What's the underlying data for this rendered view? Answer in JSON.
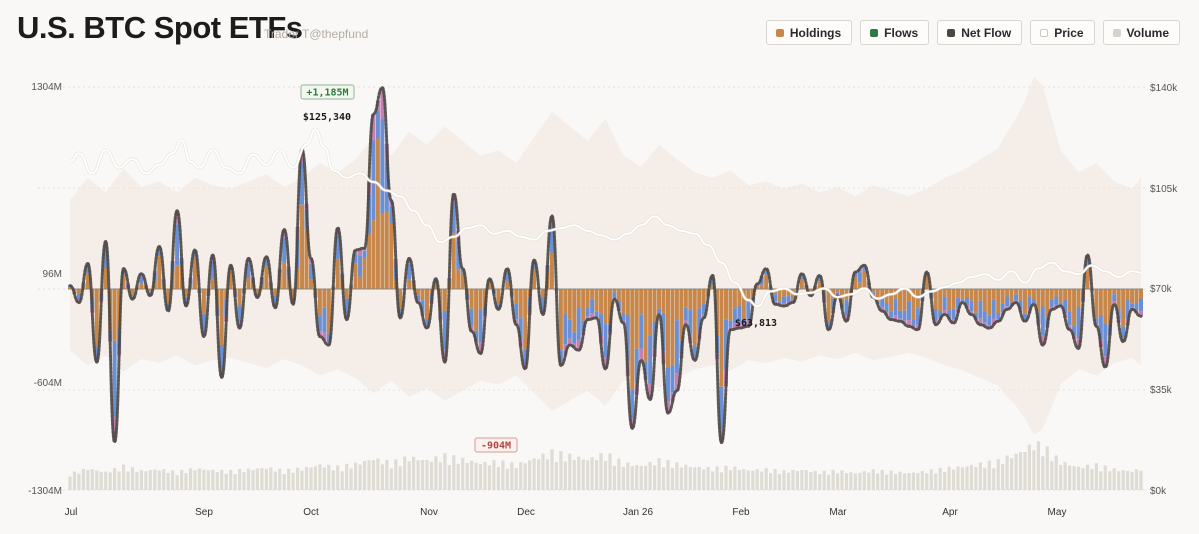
{
  "header": {
    "title": "U.S. BTC Spot ETFs",
    "subtitle": "Trader T@thepfund"
  },
  "legend": [
    {
      "label": "Holdings",
      "color": "#c8874a"
    },
    {
      "label": "Flows",
      "color": "#2f7a3f"
    },
    {
      "label": "Net Flow",
      "color": "#4a4744"
    },
    {
      "label": "Price",
      "color": "#ffffff"
    },
    {
      "label": "Volume",
      "color": "#d6d1ca"
    }
  ],
  "chart_data": {
    "type": "bar",
    "title": "U.S. BTC Spot ETFs",
    "x_ticks": [
      "Jul",
      "Sep",
      "Oct",
      "Nov",
      "Dec",
      "Jan 26",
      "Feb",
      "Mar",
      "Apr",
      "May"
    ],
    "y_left_ticks": [
      "1304M",
      "96M",
      "-604M",
      "-1304M"
    ],
    "y_right_ticks": [
      "$140k",
      "$105k",
      "$70k",
      "$35k",
      "$0k"
    ],
    "ylim_left": [
      -1304,
      1304
    ],
    "ylim_right": [
      0,
      140000
    ],
    "colors": {
      "holdings": "#c8874a",
      "etf_a": "#6b8fd4",
      "etf_b": "#c77fb2",
      "netflow": "#4a4744",
      "price": "#ffffff",
      "volume": "#d6d1ca",
      "positive_annotation": "#2f7a3f",
      "negative_annotation": "#b0463e"
    },
    "price_anchors": [
      [
        0,
        114000
      ],
      [
        2,
        117000
      ],
      [
        5,
        110000
      ],
      [
        8,
        118000
      ],
      [
        11,
        112000
      ],
      [
        14,
        115000
      ],
      [
        17,
        110000
      ],
      [
        20,
        113000
      ],
      [
        23,
        117000
      ],
      [
        25,
        121500
      ],
      [
        27,
        114000
      ],
      [
        29,
        112000
      ],
      [
        32,
        118000
      ],
      [
        35,
        112000
      ],
      [
        38,
        110000
      ],
      [
        41,
        116500
      ],
      [
        44,
        113000
      ],
      [
        47,
        118000
      ],
      [
        50,
        112000
      ],
      [
        53,
        120000
      ],
      [
        55,
        125340
      ],
      [
        57,
        119000
      ],
      [
        59,
        111000
      ],
      [
        62,
        108500
      ],
      [
        65,
        110000
      ],
      [
        68,
        107000
      ],
      [
        71,
        104000
      ],
      [
        74,
        102000
      ],
      [
        77,
        97000
      ],
      [
        80,
        92000
      ],
      [
        83,
        86000
      ],
      [
        86,
        88000
      ],
      [
        89,
        91000
      ],
      [
        92,
        92000
      ],
      [
        95,
        89000
      ],
      [
        98,
        90000
      ],
      [
        101,
        88000
      ],
      [
        104,
        87000
      ],
      [
        107,
        90000
      ],
      [
        110,
        91000
      ],
      [
        113,
        92000
      ],
      [
        116,
        90000
      ],
      [
        119,
        88500
      ],
      [
        122,
        87000
      ],
      [
        125,
        89000
      ],
      [
        128,
        92000
      ],
      [
        131,
        95000
      ],
      [
        134,
        92000
      ],
      [
        137,
        90000
      ],
      [
        140,
        89000
      ],
      [
        143,
        85000
      ],
      [
        146,
        79000
      ],
      [
        149,
        72000
      ],
      [
        152,
        66000
      ],
      [
        154,
        63813
      ],
      [
        157,
        69000
      ],
      [
        160,
        70000
      ],
      [
        163,
        68000
      ],
      [
        166,
        68500
      ],
      [
        169,
        70000
      ],
      [
        172,
        67000
      ],
      [
        175,
        68000
      ],
      [
        178,
        70000
      ],
      [
        181,
        66500
      ],
      [
        184,
        68000
      ],
      [
        187,
        70000
      ],
      [
        190,
        67000
      ],
      [
        193,
        69000
      ],
      [
        196,
        70500
      ],
      [
        199,
        72000
      ],
      [
        202,
        74000
      ],
      [
        205,
        75000
      ],
      [
        208,
        73000
      ],
      [
        211,
        76000
      ],
      [
        214,
        72000
      ],
      [
        217,
        77000
      ],
      [
        220,
        79000
      ],
      [
        223,
        76000
      ],
      [
        226,
        75000
      ],
      [
        229,
        78000
      ],
      [
        232,
        76000
      ],
      [
        235,
        74000
      ],
      [
        238,
        76000
      ],
      [
        240,
        75500
      ]
    ],
    "flow_anchors": [
      [
        0,
        20
      ],
      [
        2,
        -80
      ],
      [
        4,
        150
      ],
      [
        6,
        -430
      ],
      [
        8,
        280
      ],
      [
        10,
        -900
      ],
      [
        12,
        120
      ],
      [
        14,
        -60
      ],
      [
        16,
        90
      ],
      [
        18,
        -40
      ],
      [
        20,
        250
      ],
      [
        22,
        -130
      ],
      [
        24,
        460
      ],
      [
        26,
        -100
      ],
      [
        28,
        230
      ],
      [
        30,
        -280
      ],
      [
        32,
        200
      ],
      [
        34,
        -520
      ],
      [
        36,
        140
      ],
      [
        38,
        -230
      ],
      [
        40,
        180
      ],
      [
        42,
        -50
      ],
      [
        44,
        190
      ],
      [
        46,
        -110
      ],
      [
        48,
        350
      ],
      [
        50,
        -90
      ],
      [
        52,
        820
      ],
      [
        54,
        180
      ],
      [
        56,
        -280
      ],
      [
        58,
        -330
      ],
      [
        60,
        360
      ],
      [
        62,
        -180
      ],
      [
        64,
        230
      ],
      [
        66,
        240
      ],
      [
        68,
        1030
      ],
      [
        70,
        1185
      ],
      [
        72,
        520
      ],
      [
        74,
        -170
      ],
      [
        76,
        180
      ],
      [
        78,
        -80
      ],
      [
        80,
        -230
      ],
      [
        82,
        60
      ],
      [
        84,
        -430
      ],
      [
        86,
        560
      ],
      [
        88,
        120
      ],
      [
        90,
        -250
      ],
      [
        92,
        -380
      ],
      [
        94,
        60
      ],
      [
        96,
        -120
      ],
      [
        98,
        120
      ],
      [
        100,
        -210
      ],
      [
        102,
        -470
      ],
      [
        104,
        170
      ],
      [
        106,
        -150
      ],
      [
        108,
        430
      ],
      [
        110,
        -450
      ],
      [
        112,
        -330
      ],
      [
        114,
        -360
      ],
      [
        116,
        -180
      ],
      [
        118,
        -170
      ],
      [
        120,
        -470
      ],
      [
        122,
        -60
      ],
      [
        124,
        -200
      ],
      [
        126,
        -820
      ],
      [
        128,
        -420
      ],
      [
        130,
        -650
      ],
      [
        132,
        -150
      ],
      [
        134,
        -730
      ],
      [
        136,
        -600
      ],
      [
        138,
        -210
      ],
      [
        140,
        -420
      ],
      [
        142,
        -170
      ],
      [
        144,
        80
      ],
      [
        146,
        -904
      ],
      [
        148,
        -240
      ],
      [
        150,
        -230
      ],
      [
        152,
        -220
      ],
      [
        154,
        30
      ],
      [
        156,
        120
      ],
      [
        158,
        -90
      ],
      [
        160,
        -100
      ],
      [
        162,
        -80
      ],
      [
        164,
        90
      ],
      [
        166,
        -40
      ],
      [
        168,
        80
      ],
      [
        170,
        -240
      ],
      [
        172,
        -40
      ],
      [
        174,
        -190
      ],
      [
        176,
        100
      ],
      [
        178,
        140
      ],
      [
        180,
        -50
      ],
      [
        182,
        -130
      ],
      [
        184,
        -180
      ],
      [
        186,
        -190
      ],
      [
        188,
        -220
      ],
      [
        190,
        -240
      ],
      [
        192,
        100
      ],
      [
        194,
        -210
      ],
      [
        196,
        -150
      ],
      [
        198,
        -200
      ],
      [
        200,
        -80
      ],
      [
        202,
        -150
      ],
      [
        204,
        -210
      ],
      [
        206,
        -230
      ],
      [
        208,
        -190
      ],
      [
        210,
        -120
      ],
      [
        212,
        -80
      ],
      [
        214,
        -190
      ],
      [
        216,
        -90
      ],
      [
        218,
        -330
      ],
      [
        220,
        -120
      ],
      [
        222,
        -100
      ],
      [
        224,
        -240
      ],
      [
        226,
        -350
      ],
      [
        228,
        200
      ],
      [
        230,
        -220
      ],
      [
        232,
        -460
      ],
      [
        234,
        -90
      ],
      [
        236,
        -310
      ],
      [
        238,
        -120
      ],
      [
        240,
        -160
      ]
    ],
    "volume_anchors": [
      [
        0,
        0.18
      ],
      [
        4,
        0.3
      ],
      [
        8,
        0.22
      ],
      [
        12,
        0.35
      ],
      [
        16,
        0.25
      ],
      [
        20,
        0.28
      ],
      [
        24,
        0.22
      ],
      [
        28,
        0.3
      ],
      [
        32,
        0.26
      ],
      [
        36,
        0.24
      ],
      [
        40,
        0.28
      ],
      [
        44,
        0.32
      ],
      [
        48,
        0.25
      ],
      [
        52,
        0.3
      ],
      [
        56,
        0.38
      ],
      [
        60,
        0.33
      ],
      [
        64,
        0.4
      ],
      [
        68,
        0.52
      ],
      [
        72,
        0.42
      ],
      [
        76,
        0.55
      ],
      [
        80,
        0.48
      ],
      [
        84,
        0.58
      ],
      [
        88,
        0.5
      ],
      [
        92,
        0.42
      ],
      [
        96,
        0.45
      ],
      [
        100,
        0.38
      ],
      [
        104,
        0.52
      ],
      [
        108,
        0.66
      ],
      [
        112,
        0.58
      ],
      [
        116,
        0.5
      ],
      [
        120,
        0.62
      ],
      [
        124,
        0.42
      ],
      [
        128,
        0.36
      ],
      [
        132,
        0.48
      ],
      [
        136,
        0.4
      ],
      [
        140,
        0.33
      ],
      [
        144,
        0.3
      ],
      [
        148,
        0.34
      ],
      [
        152,
        0.26
      ],
      [
        156,
        0.28
      ],
      [
        160,
        0.24
      ],
      [
        164,
        0.27
      ],
      [
        168,
        0.22
      ],
      [
        172,
        0.25
      ],
      [
        176,
        0.2
      ],
      [
        180,
        0.26
      ],
      [
        184,
        0.23
      ],
      [
        188,
        0.2
      ],
      [
        192,
        0.24
      ],
      [
        196,
        0.3
      ],
      [
        200,
        0.34
      ],
      [
        204,
        0.4
      ],
      [
        208,
        0.46
      ],
      [
        210,
        0.55
      ],
      [
        212,
        0.62
      ],
      [
        214,
        0.72
      ],
      [
        216,
        0.85
      ],
      [
        218,
        0.8
      ],
      [
        222,
        0.45
      ],
      [
        226,
        0.33
      ],
      [
        230,
        0.38
      ],
      [
        234,
        0.28
      ],
      [
        238,
        0.24
      ],
      [
        240,
        0.3
      ]
    ],
    "annotations": [
      {
        "text": "+1,185M",
        "kind": "positive"
      },
      {
        "text": "$125,340",
        "kind": "price"
      },
      {
        "text": "-904M",
        "kind": "negative"
      },
      {
        "text": "$63,813",
        "kind": "price"
      }
    ]
  }
}
